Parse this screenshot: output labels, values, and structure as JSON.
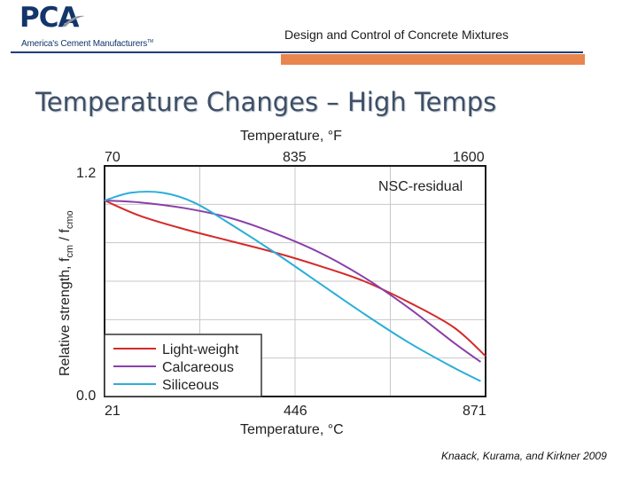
{
  "logo": {
    "mark": "PCA",
    "tagline": "America's Cement Manufacturers",
    "tm": "TM"
  },
  "header": {
    "title": "Design and Control of Concrete Mixtures"
  },
  "slide": {
    "title": "Temperature Changes – High Temps"
  },
  "credit": "Knaack, Kurama, and Kirkner 2009",
  "colors": {
    "brand": "#13356b",
    "accent_bar": "#e8864d",
    "rule": "#1f3f79"
  },
  "chart_data": {
    "type": "line",
    "annotation": "NSC-residual",
    "x_label": "Temperature, °C",
    "x_top_label": "Temperature, °F",
    "y_label": "Relative strength, f",
    "y_label_sub": "cm",
    "y_label_div": " / f",
    "y_label_sub2": "cmo",
    "xlim": [
      21,
      871
    ],
    "ylim": [
      0.0,
      1.2
    ],
    "x_ticks": [
      21,
      446,
      871
    ],
    "x_tick_labels": [
      "21",
      "446",
      "871"
    ],
    "x_top_tick_labels": [
      "70",
      "835",
      "1600"
    ],
    "y_ticks": [
      0.0,
      1.2
    ],
    "y_tick_labels": [
      "0.0",
      "1.2"
    ],
    "grid": true,
    "legend_position": "bottom-left",
    "series": [
      {
        "name": "Light-weight",
        "color": "#d42a2a",
        "x": [
          21,
          100,
          200,
          300,
          400,
          500,
          600,
          700,
          800,
          871
        ],
        "y": [
          1.02,
          0.94,
          0.87,
          0.81,
          0.75,
          0.68,
          0.6,
          0.49,
          0.36,
          0.21
        ]
      },
      {
        "name": "Calcareous",
        "color": "#8a3fa8",
        "x": [
          21,
          100,
          200,
          300,
          400,
          500,
          600,
          700,
          800,
          860
        ],
        "y": [
          1.02,
          1.01,
          0.98,
          0.93,
          0.85,
          0.75,
          0.62,
          0.46,
          0.28,
          0.18
        ]
      },
      {
        "name": "Siliceous",
        "color": "#2aaed8",
        "x": [
          21,
          80,
          150,
          220,
          300,
          400,
          500,
          600,
          700,
          800,
          860
        ],
        "y": [
          1.02,
          1.06,
          1.06,
          1.01,
          0.9,
          0.75,
          0.59,
          0.43,
          0.28,
          0.15,
          0.08
        ]
      }
    ]
  }
}
